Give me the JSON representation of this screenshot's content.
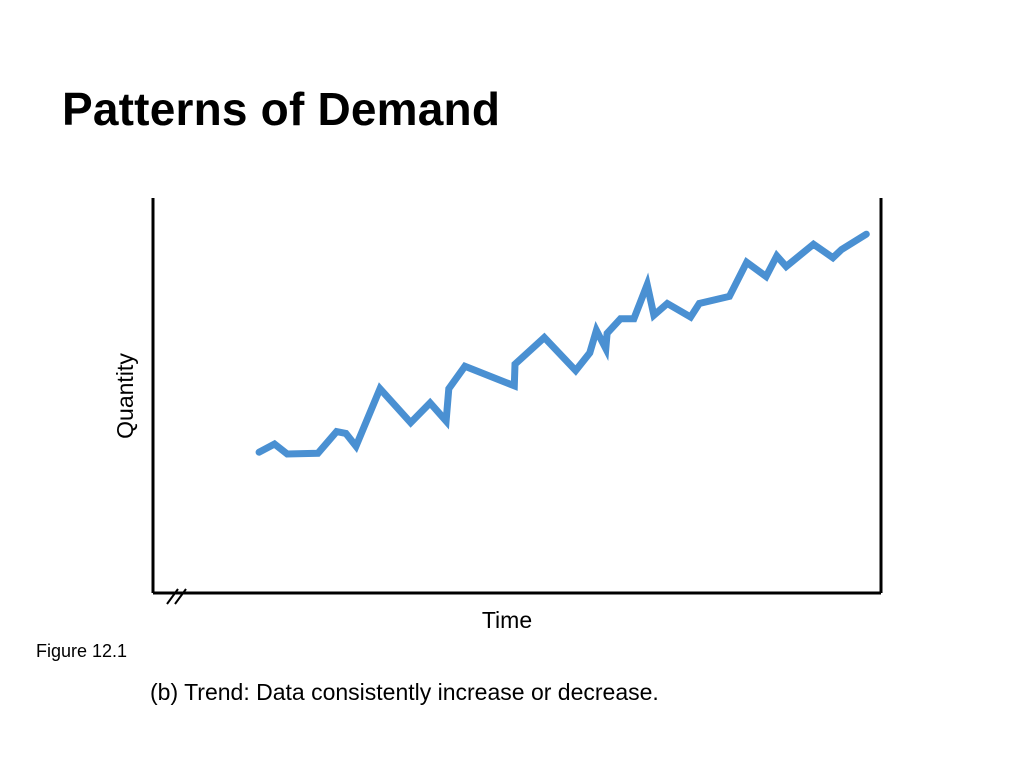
{
  "slide": {
    "title": "Patterns of Demand",
    "figure_label": "Figure 12.1",
    "caption": "(b) Trend: Data consistently increase or decrease."
  },
  "colors": {
    "line": "#4A90D2",
    "axis": "#000000",
    "text": "#000000"
  },
  "chart_data": {
    "type": "line",
    "title": "",
    "xlabel": "Time",
    "ylabel": "Quantity",
    "x_ticks": "none",
    "y_ticks": "none",
    "grid": false,
    "legend": "none",
    "xlim": [
      0,
      100
    ],
    "ylim": [
      0,
      100
    ],
    "axis_break": "x-axis origin",
    "series": [
      {
        "x": [
          8.1,
          10.4,
          12.3,
          16.9,
          19.7,
          21.1,
          22.6,
          26.2,
          30.8,
          33.7,
          36.1,
          36.5,
          38.9,
          46.3,
          46.4,
          50.8,
          55.5,
          57.6,
          58.6,
          60.0,
          60.2,
          62.2,
          64.2,
          66.2,
          67.2,
          69.2,
          72.7,
          74.0,
          78.5,
          81.1,
          84.0,
          85.6,
          87.0,
          91.1,
          94.0,
          95.3,
          99.0
        ],
        "y": [
          29.8,
          32.1,
          29.3,
          29.5,
          35.6,
          35.1,
          31.5,
          47.7,
          38.1,
          43.7,
          38.6,
          47.7,
          54.0,
          48.5,
          54.6,
          62.1,
          52.8,
          57.8,
          64.1,
          59.0,
          63.3,
          67.4,
          67.4,
          77.0,
          68.4,
          71.7,
          67.9,
          71.7,
          73.7,
          83.3,
          79.3,
          85.1,
          82.1,
          88.4,
          84.6,
          86.9,
          91.2
        ]
      }
    ]
  }
}
